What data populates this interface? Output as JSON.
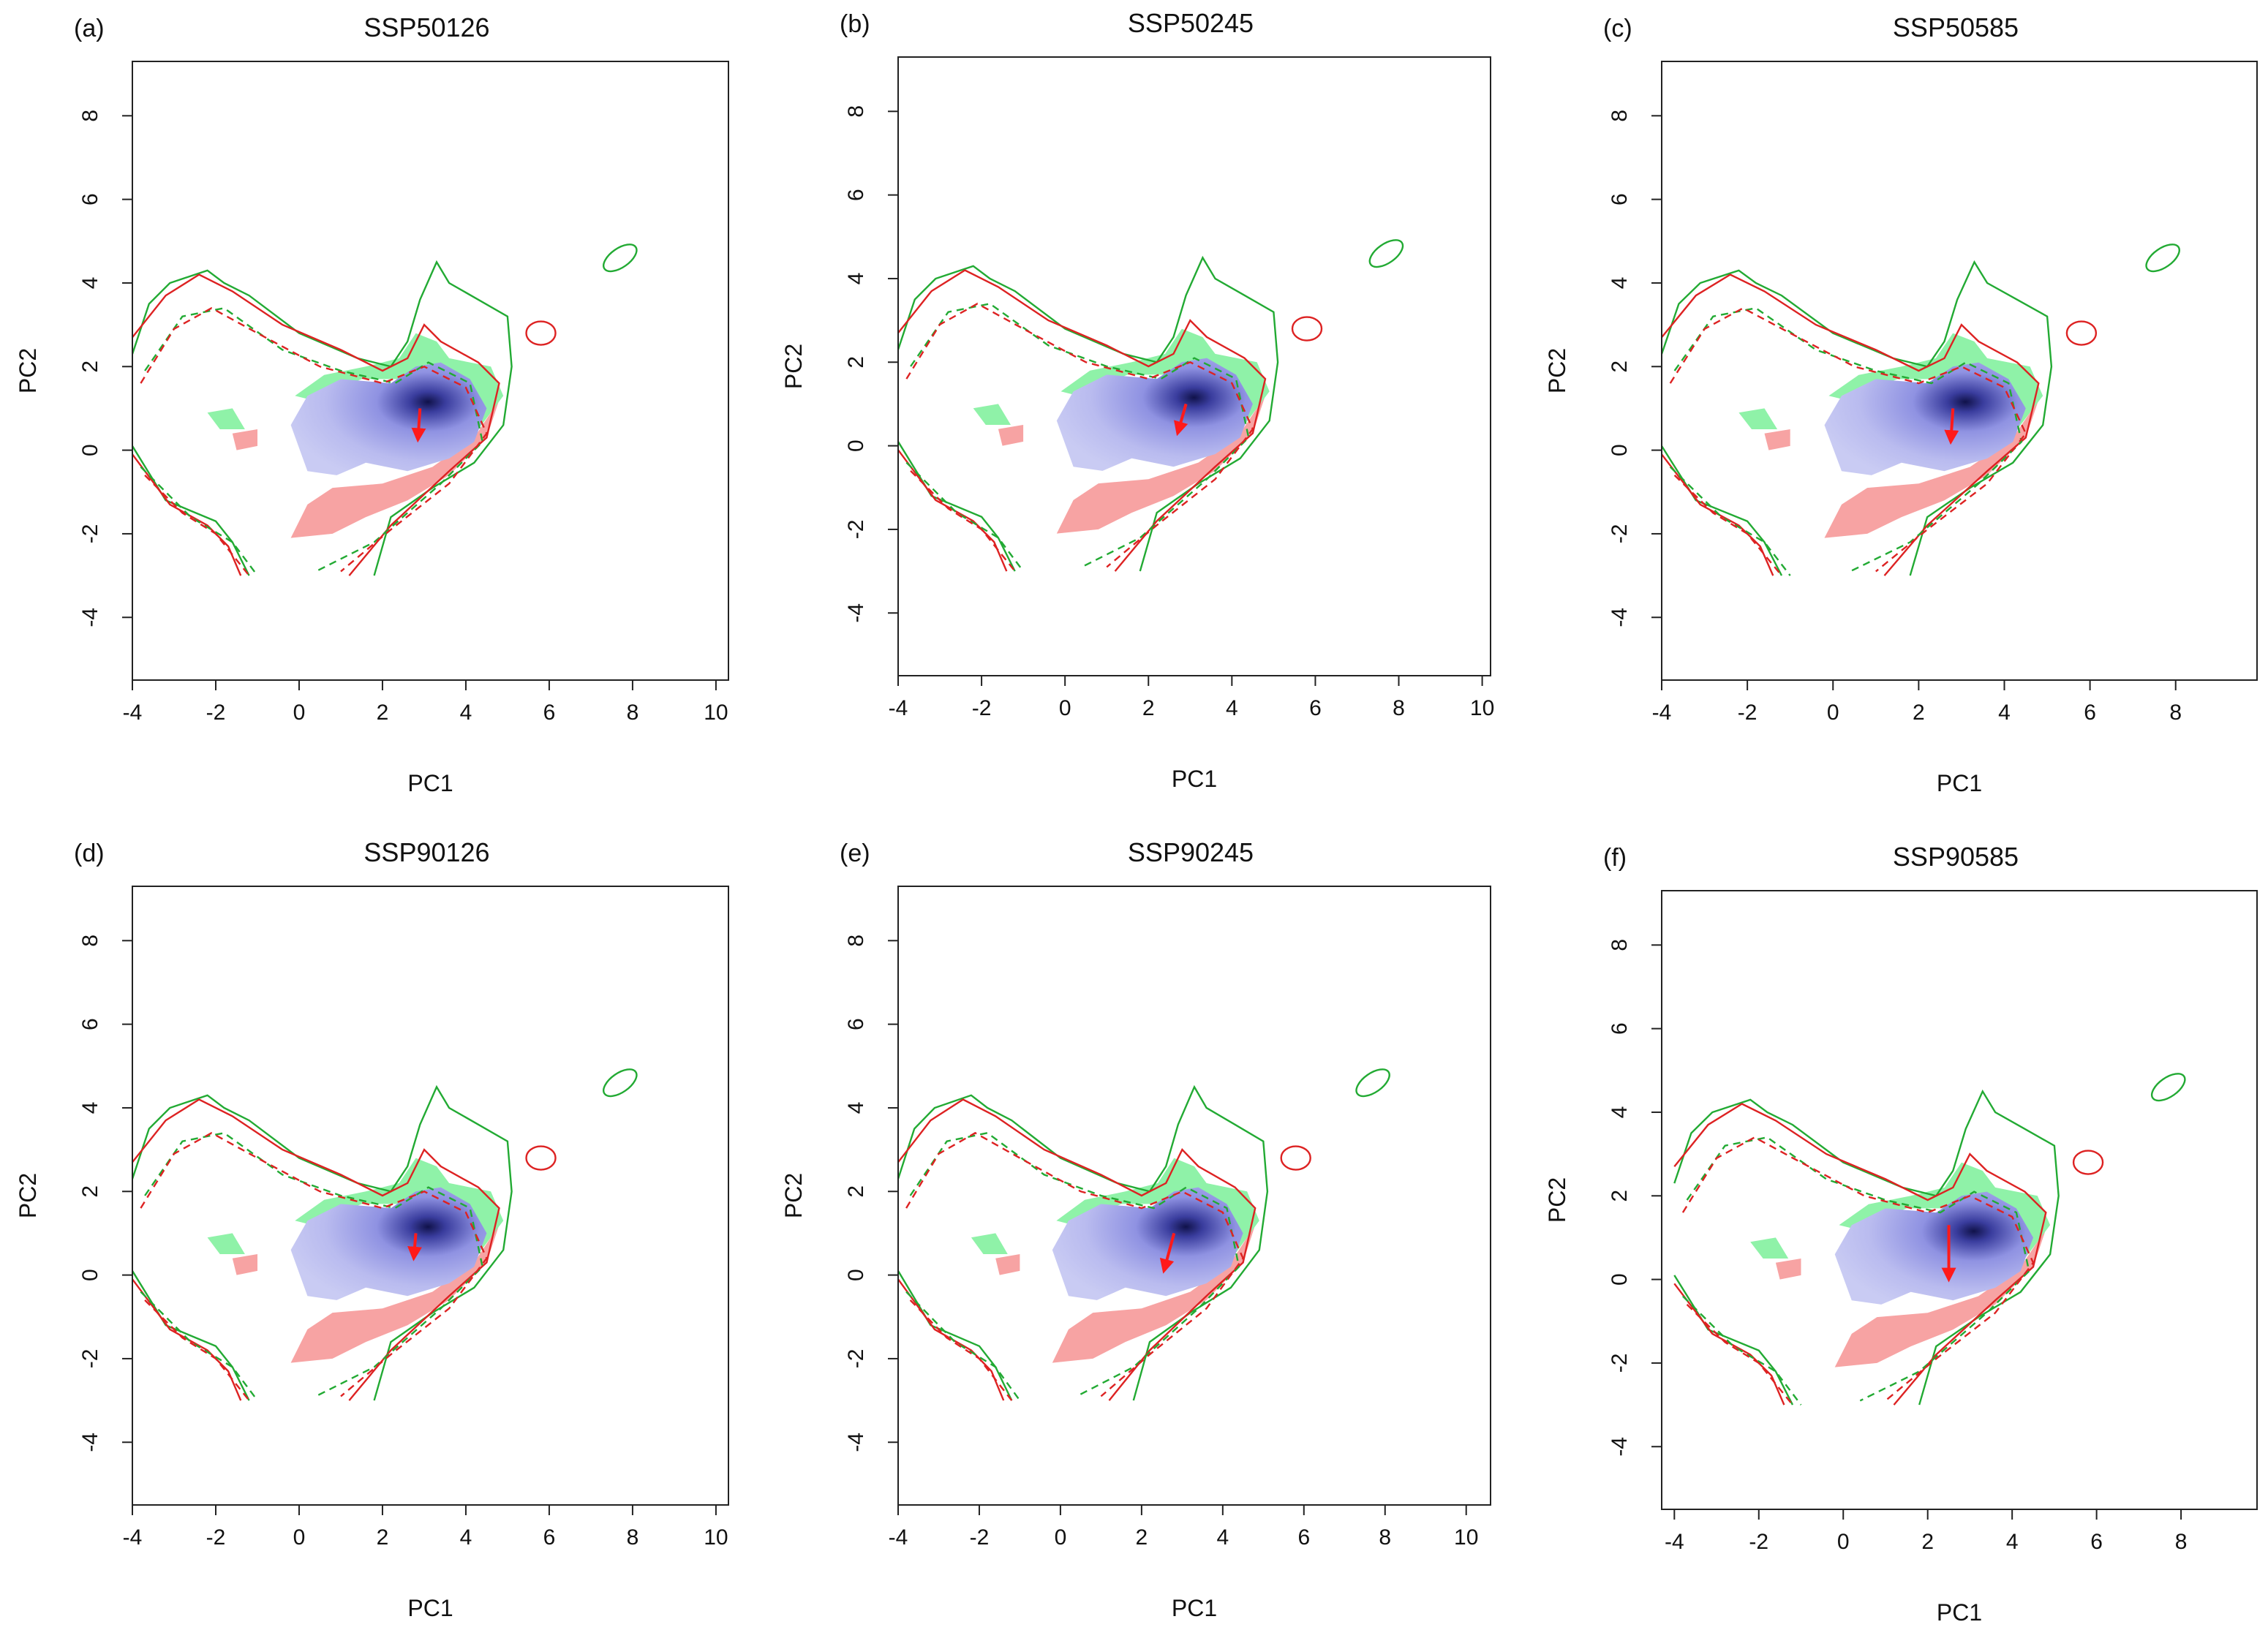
{
  "figure": {
    "colors": {
      "blue_core": "#6f72d6",
      "blue_light": "#c4c6f1",
      "green_fill": "#8ff2a8",
      "red_fill": "#f7a3a3",
      "green_line": "#22aa33",
      "red_line": "#dd2222",
      "arrow": "#ff1a1a"
    }
  },
  "chart_data": [
    {
      "label": "(a)",
      "title": "SSP50126",
      "type": "scatter",
      "xlabel": "PC1",
      "ylabel": "PC2",
      "xlim": [
        -4,
        10.3
      ],
      "ylim": [
        -5.5,
        9.3
      ],
      "xticks": [
        "-4",
        "-2",
        "0",
        "2",
        "4",
        "6",
        "8",
        "10"
      ],
      "yticks": [
        "-4",
        "-2",
        "0",
        "2",
        "4",
        "6",
        "8"
      ],
      "shift_arrow": {
        "from": [
          2.9,
          1.0
        ],
        "to": [
          2.85,
          0.25
        ]
      },
      "density_center": [
        3.2,
        1.1
      ]
    },
    {
      "label": "(b)",
      "title": "SSP50245",
      "type": "scatter",
      "xlabel": "PC1",
      "ylabel": "PC2",
      "xlim": [
        -4,
        10.2
      ],
      "ylim": [
        -5.5,
        9.3
      ],
      "xticks": [
        "-4",
        "-2",
        "0",
        "2",
        "4",
        "6",
        "8",
        "10"
      ],
      "yticks": [
        "-4",
        "-2",
        "0",
        "2",
        "4",
        "6",
        "8"
      ],
      "shift_arrow": {
        "from": [
          2.9,
          1.0
        ],
        "to": [
          2.7,
          0.3
        ]
      },
      "density_center": [
        3.2,
        1.1
      ]
    },
    {
      "label": "(c)",
      "title": "SSP50585",
      "type": "scatter",
      "xlabel": "PC1",
      "ylabel": "PC2",
      "xlim": [
        -4,
        9.9
      ],
      "ylim": [
        -5.5,
        9.3
      ],
      "xticks": [
        "-4",
        "-2",
        "0",
        "2",
        "4",
        "6",
        "8"
      ],
      "yticks": [
        "-4",
        "-2",
        "0",
        "2",
        "4",
        "6",
        "8"
      ],
      "shift_arrow": {
        "from": [
          2.8,
          1.0
        ],
        "to": [
          2.75,
          0.2
        ]
      },
      "density_center": [
        3.2,
        1.1
      ]
    },
    {
      "label": "(d)",
      "title": "SSP90126",
      "type": "scatter",
      "xlabel": "PC1",
      "ylabel": "PC2",
      "xlim": [
        -4,
        10.3
      ],
      "ylim": [
        -5.5,
        9.3
      ],
      "xticks": [
        "-4",
        "-2",
        "0",
        "2",
        "4",
        "6",
        "8",
        "10"
      ],
      "yticks": [
        "-4",
        "-2",
        "0",
        "2",
        "4",
        "6",
        "8"
      ],
      "shift_arrow": {
        "from": [
          2.8,
          1.0
        ],
        "to": [
          2.75,
          0.4
        ]
      },
      "density_center": [
        3.2,
        1.1
      ]
    },
    {
      "label": "(e)",
      "title": "SSP90245",
      "type": "scatter",
      "xlabel": "PC1",
      "ylabel": "PC2",
      "xlim": [
        -4,
        10.6
      ],
      "ylim": [
        -5.5,
        9.3
      ],
      "xticks": [
        "-4",
        "-2",
        "0",
        "2",
        "4",
        "6",
        "8",
        "10"
      ],
      "yticks": [
        "-4",
        "-2",
        "0",
        "2",
        "4",
        "6",
        "8"
      ],
      "shift_arrow": {
        "from": [
          2.8,
          1.0
        ],
        "to": [
          2.55,
          0.1
        ]
      },
      "density_center": [
        3.2,
        1.2
      ]
    },
    {
      "label": "(f)",
      "title": "SSP90585",
      "type": "scatter",
      "xlabel": "PC1",
      "ylabel": "PC2",
      "xlim": [
        -4.3,
        9.8
      ],
      "ylim": [
        -5.5,
        9.3
      ],
      "xticks": [
        "-4",
        "-2",
        "0",
        "2",
        "4",
        "6",
        "8"
      ],
      "yticks": [
        "-4",
        "-2",
        "0",
        "2",
        "4",
        "6",
        "8"
      ],
      "shift_arrow": {
        "from": [
          2.5,
          1.3
        ],
        "to": [
          2.5,
          0.0
        ]
      },
      "density_center": [
        3.0,
        1.2
      ]
    }
  ]
}
